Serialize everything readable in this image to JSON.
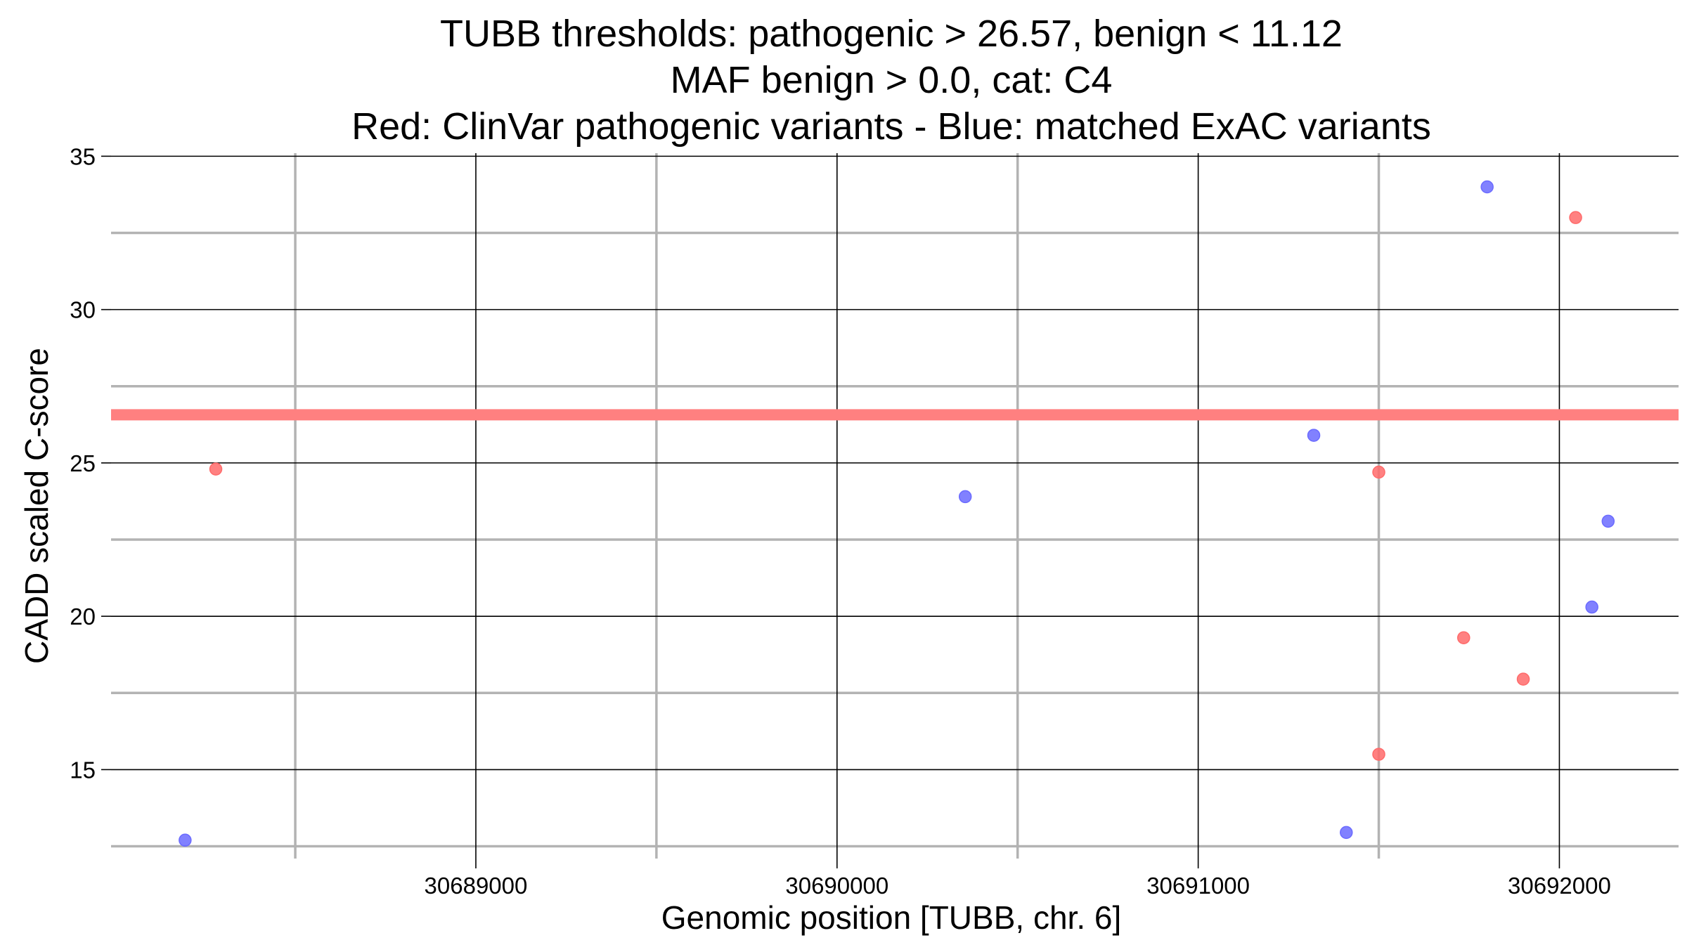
{
  "chart_data": {
    "type": "scatter",
    "title_lines": [
      "TUBB thresholds: pathogenic > 26.57, benign < 11.12",
      "MAF benign > 0.0, cat: C4",
      "Red: ClinVar pathogenic variants - Blue: matched ExAC variants"
    ],
    "xlabel": "Genomic position [TUBB, chr. 6]",
    "ylabel": "CADD scaled C-score",
    "xlim": [
      30687990,
      30692330
    ],
    "ylim": [
      12.1,
      35.1
    ],
    "x_ticks": [
      30689000,
      30690000,
      30691000,
      30692000
    ],
    "x_tick_labels": [
      "30689000",
      "30690000",
      "30691000",
      "30692000"
    ],
    "x_minor_ticks": [
      30688500,
      30689500,
      30690500,
      30691500
    ],
    "y_ticks": [
      15,
      20,
      25,
      30,
      35
    ],
    "y_tick_labels": [
      "15",
      "20",
      "25",
      "30",
      "35"
    ],
    "y_minor_ticks": [
      12.5,
      17.5,
      22.5,
      27.5,
      32.5
    ],
    "threshold_line": {
      "y": 26.57,
      "color": "#ff8080"
    },
    "grid": true,
    "series": [
      {
        "color": "#ff6b6b",
        "points": [
          {
            "x": 30688280,
            "y": 24.8
          },
          {
            "x": 30691500,
            "y": 24.7
          },
          {
            "x": 30691500,
            "y": 15.5
          },
          {
            "x": 30691735,
            "y": 19.3
          },
          {
            "x": 30691900,
            "y": 17.95
          },
          {
            "x": 30692045,
            "y": 33.0
          }
        ]
      },
      {
        "color": "#6b6bff",
        "points": [
          {
            "x": 30688195,
            "y": 12.7
          },
          {
            "x": 30690355,
            "y": 23.9
          },
          {
            "x": 30691320,
            "y": 25.9
          },
          {
            "x": 30691410,
            "y": 12.95
          },
          {
            "x": 30691800,
            "y": 34.0
          },
          {
            "x": 30692090,
            "y": 20.3
          },
          {
            "x": 30692135,
            "y": 23.1
          }
        ]
      }
    ]
  }
}
